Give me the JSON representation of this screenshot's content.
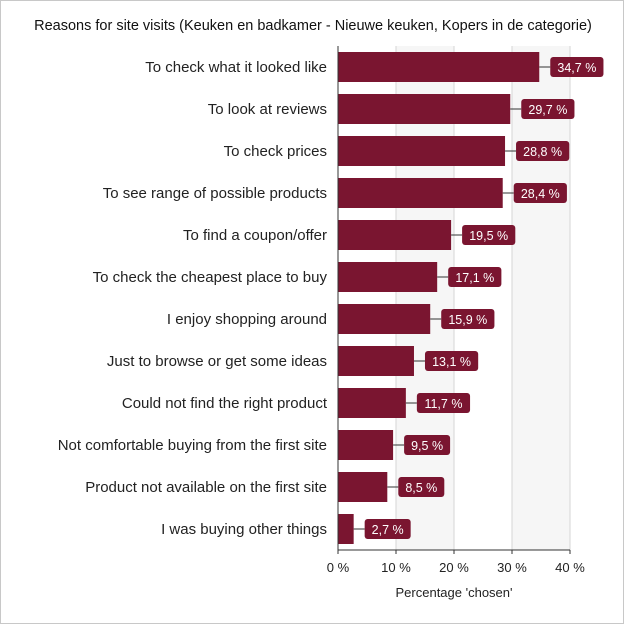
{
  "chart_data": {
    "type": "bar",
    "orientation": "horizontal",
    "title": "Reasons for site visits (Keuken en badkamer - Nieuwe keuken, Kopers in de categorie)",
    "xlabel": "Percentage 'chosen'",
    "ylabel": "",
    "xlim": [
      0,
      40
    ],
    "ticks": [
      0,
      10,
      20,
      30,
      40
    ],
    "tick_labels": [
      "0 %",
      "10 %",
      "20 %",
      "30 %",
      "40 %"
    ],
    "grid": true,
    "bar_color": "#7a1530",
    "label_color": "#7a1530",
    "shaded_band_color": "#f6f6f6",
    "categories": [
      "To check what it looked like",
      "To look at reviews",
      "To check prices",
      "To see range of possible products",
      "To find a coupon/offer",
      "To check the cheapest place to buy",
      "I enjoy shopping around",
      "Just to browse or get some ideas",
      "Could not find the right product",
      "Not comfortable buying from the first site",
      "Product not available on the first site",
      "I was buying other things"
    ],
    "values": [
      34.7,
      29.7,
      28.8,
      28.4,
      19.5,
      17.1,
      15.9,
      13.1,
      11.7,
      9.5,
      8.5,
      2.7
    ],
    "value_labels": [
      "34,7 %",
      "29,7 %",
      "28,8 %",
      "28,4 %",
      "19,5 %",
      "17,1 %",
      "15,9 %",
      "13,1 %",
      "11,7 %",
      "9,5 %",
      "8,5 %",
      "2,7 %"
    ]
  }
}
